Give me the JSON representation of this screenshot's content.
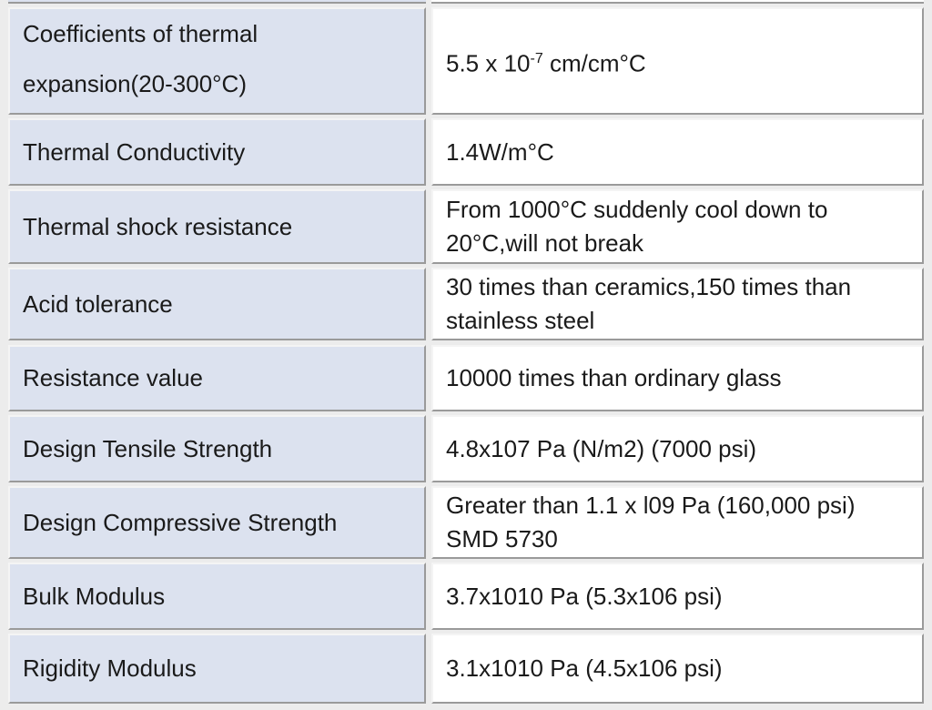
{
  "table": {
    "rows": [
      [
        [
          "Coefficients of thermal",
          "expansion(20-300°C)"
        ],
        [
          {
            "text": "5.5 x 10",
            "sup": "-7",
            "rest": " cm/cm°C"
          }
        ]
      ],
      [
        [
          "Thermal Conductivity"
        ],
        [
          "1.4W/m°C"
        ]
      ],
      [
        [
          "Thermal shock resistance"
        ],
        [
          "From 1000°C suddenly cool down to",
          "20°C,will not break"
        ]
      ],
      [
        [
          "Acid tolerance"
        ],
        [
          "30 times than ceramics,150 times than",
          "stainless steel"
        ]
      ],
      [
        [
          "Resistance value"
        ],
        [
          "10000 times than ordinary glass"
        ]
      ],
      [
        [
          "Design Tensile Strength"
        ],
        [
          "4.8x107 Pa (N/m2) (7000 psi)"
        ]
      ],
      [
        [
          "Design Compressive Strength"
        ],
        [
          "Greater than 1.1 x l09 Pa (160,000 psi)",
          "SMD 5730"
        ]
      ],
      [
        [
          "Bulk Modulus"
        ],
        [
          "3.7x1010 Pa (5.3x106 psi)"
        ]
      ],
      [
        [
          "Rigidity Modulus"
        ],
        [
          "3.1x1010 Pa (4.5x106 psi)"
        ]
      ]
    ]
  }
}
